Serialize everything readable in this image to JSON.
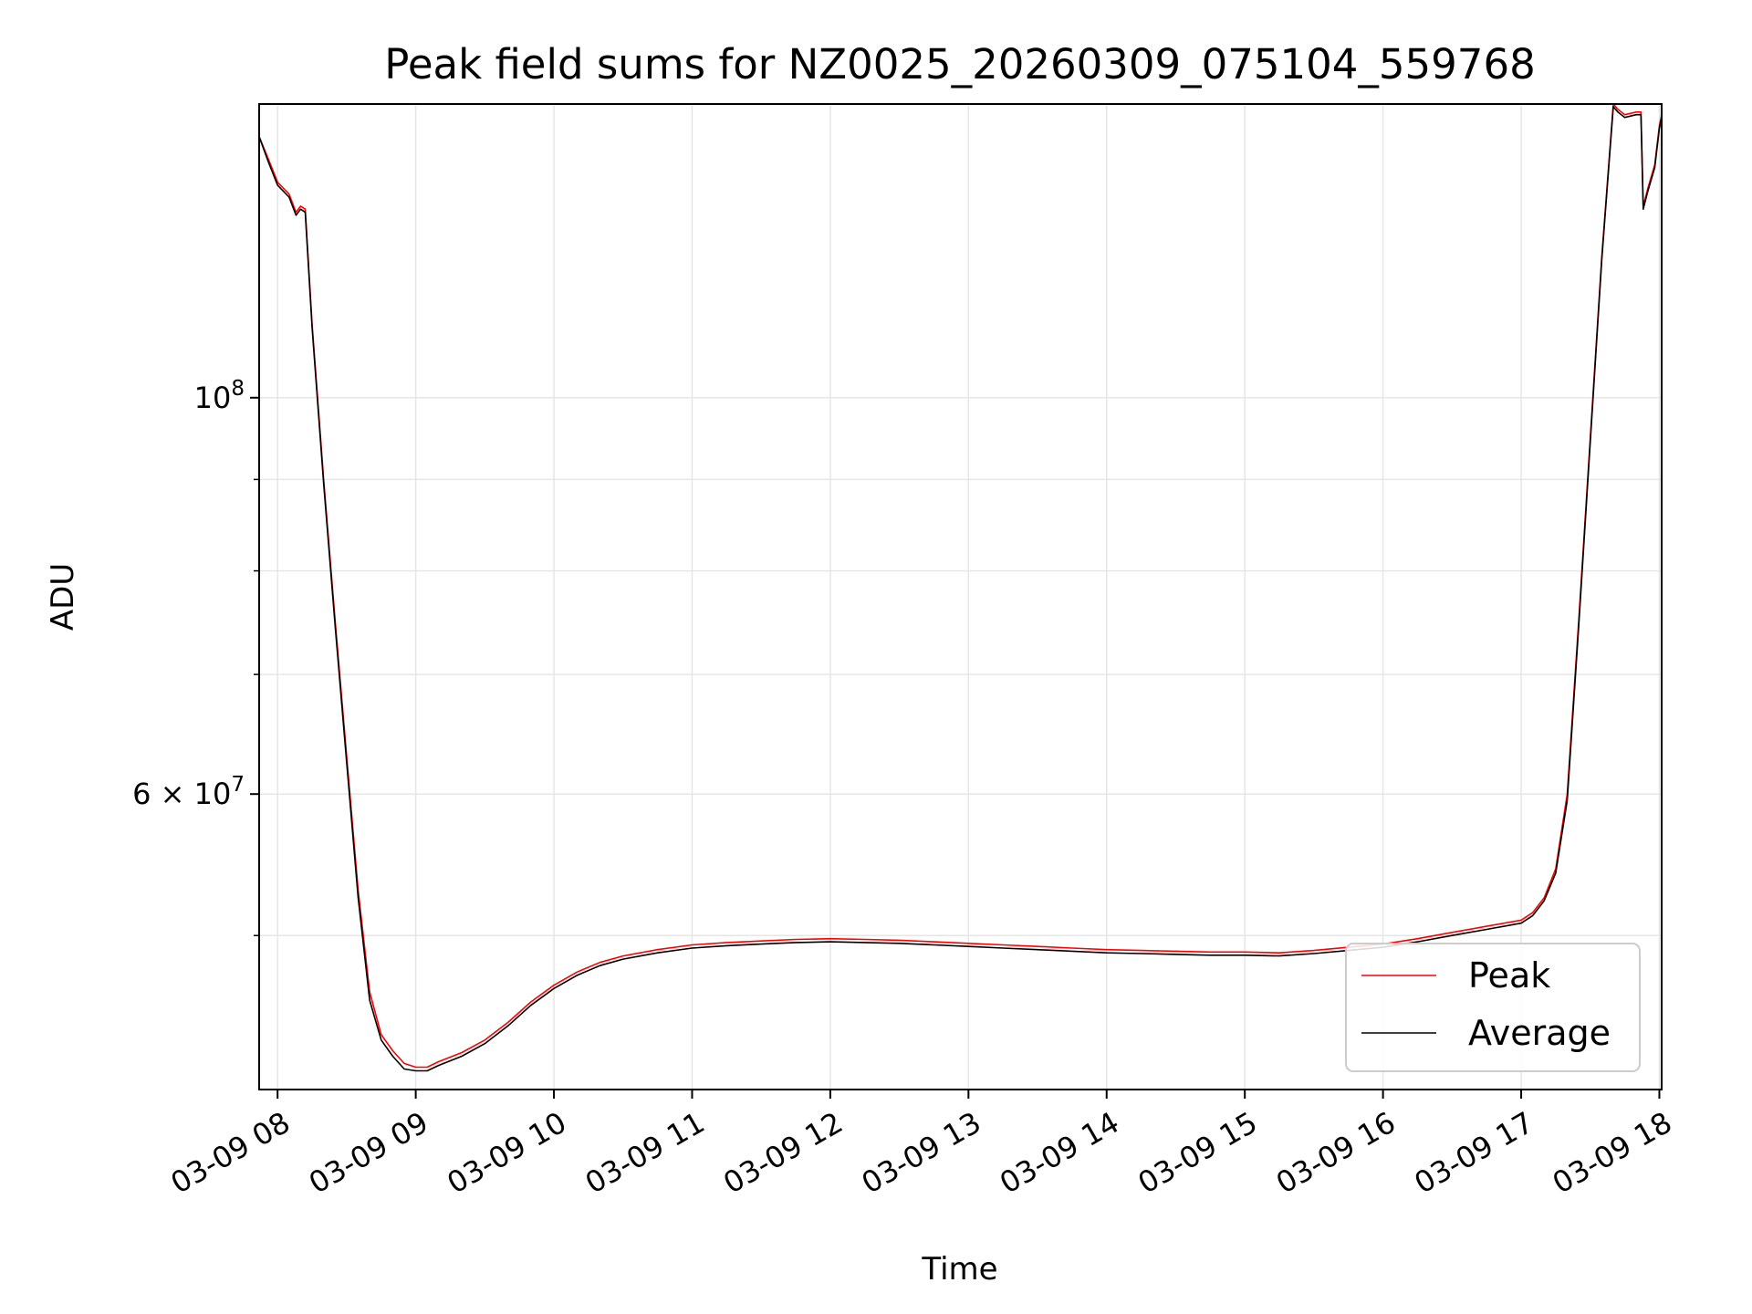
{
  "chart_data": {
    "type": "line",
    "title": "Peak field sums for NZ0025_20260309_075104_559768",
    "xlabel": "Time",
    "ylabel": "ADU",
    "x_scale": "time",
    "y_scale": "log",
    "xlim": [
      "2026-03-09 07:52",
      "2026-03-09 18:01"
    ],
    "ylim": [
      41000000.0,
      146000000.0
    ],
    "grid": true,
    "legend_position": "lower-right",
    "x_tick_labels": [
      "03-09 08",
      "03-09 09",
      "03-09 10",
      "03-09 11",
      "03-09 12",
      "03-09 13",
      "03-09 14",
      "03-09 15",
      "03-09 16",
      "03-09 17",
      "03-09 18"
    ],
    "y_major_ticks": [
      {
        "value": 100000000,
        "base": "10",
        "exponent": "8"
      },
      {
        "value": 60000000,
        "mantissa": "6",
        "times": "×",
        "base": "10",
        "exponent": "7"
      }
    ],
    "y_minor_tick_values": [
      50000000,
      70000000,
      80000000,
      90000000
    ],
    "series": [
      {
        "name": "Peak",
        "color": "#ff0000",
        "x": [
          "07:52",
          "07:56",
          "08:00",
          "08:05",
          "08:08",
          "08:10",
          "08:12",
          "08:15",
          "08:20",
          "08:25",
          "08:30",
          "08:35",
          "08:40",
          "08:45",
          "08:50",
          "08:55",
          "09:00",
          "09:05",
          "09:10",
          "09:20",
          "09:30",
          "09:40",
          "09:50",
          "10:00",
          "10:10",
          "10:20",
          "10:30",
          "10:45",
          "11:00",
          "11:15",
          "11:30",
          "11:45",
          "12:00",
          "12:15",
          "12:30",
          "12:45",
          "13:00",
          "13:15",
          "13:30",
          "13:45",
          "14:00",
          "14:15",
          "14:30",
          "14:45",
          "15:00",
          "15:15",
          "15:30",
          "15:45",
          "16:00",
          "16:15",
          "16:30",
          "16:45",
          "17:00",
          "17:05",
          "17:10",
          "17:15",
          "17:20",
          "17:25",
          "17:30",
          "17:35",
          "17:40",
          "17:42",
          "17:45",
          "17:50",
          "17:52",
          "17:53",
          "17:55",
          "17:58",
          "18:00",
          "18:01"
        ],
        "y": [
          140000000,
          136000000,
          132000000,
          130000000,
          127000000,
          128000000,
          127500000,
          110000000,
          90000000,
          75000000,
          63000000,
          53000000,
          46500000,
          44000000,
          43100000,
          42400000,
          42200000,
          42200000,
          42500000,
          43000000,
          43700000,
          44700000,
          45900000,
          46900000,
          47700000,
          48300000,
          48700000,
          49100000,
          49400000,
          49550000,
          49650000,
          49750000,
          49800000,
          49750000,
          49700000,
          49600000,
          49500000,
          49400000,
          49300000,
          49200000,
          49100000,
          49050000,
          49000000,
          48950000,
          48950000,
          48900000,
          49050000,
          49250000,
          49450000,
          49800000,
          50200000,
          50600000,
          51000000,
          51500000,
          52500000,
          54500000,
          60000000,
          75000000,
          95000000,
          120000000,
          146000000,
          145000000,
          144000000,
          144500000,
          144500000,
          128000000,
          131000000,
          135000000,
          142000000,
          144000000
        ]
      },
      {
        "name": "Average",
        "color": "#000000",
        "x": [
          "07:52",
          "07:56",
          "08:00",
          "08:05",
          "08:08",
          "08:10",
          "08:12",
          "08:15",
          "08:20",
          "08:25",
          "08:30",
          "08:35",
          "08:40",
          "08:45",
          "08:50",
          "08:55",
          "09:00",
          "09:05",
          "09:10",
          "09:20",
          "09:30",
          "09:40",
          "09:50",
          "10:00",
          "10:10",
          "10:20",
          "10:30",
          "10:45",
          "11:00",
          "11:15",
          "11:30",
          "11:45",
          "12:00",
          "12:15",
          "12:30",
          "12:45",
          "13:00",
          "13:15",
          "13:30",
          "13:45",
          "14:00",
          "14:15",
          "14:30",
          "14:45",
          "15:00",
          "15:15",
          "15:30",
          "15:45",
          "16:00",
          "16:15",
          "16:30",
          "16:45",
          "17:00",
          "17:05",
          "17:10",
          "17:15",
          "17:20",
          "17:25",
          "17:30",
          "17:35",
          "17:40",
          "17:42",
          "17:45",
          "17:50",
          "17:52",
          "17:53",
          "17:55",
          "17:58",
          "18:00",
          "18:01"
        ],
        "y": [
          140000000,
          135500000,
          131500000,
          129500000,
          126500000,
          127500000,
          127000000,
          109500000,
          89500000,
          74500000,
          62500000,
          52500000,
          46000000,
          43700000,
          42800000,
          42100000,
          42000000,
          42000000,
          42300000,
          42800000,
          43500000,
          44500000,
          45700000,
          46700000,
          47500000,
          48100000,
          48500000,
          48900000,
          49200000,
          49350000,
          49450000,
          49550000,
          49600000,
          49550000,
          49500000,
          49400000,
          49300000,
          49200000,
          49100000,
          49000000,
          48900000,
          48850000,
          48800000,
          48750000,
          48750000,
          48700000,
          48850000,
          49050000,
          49250000,
          49600000,
          50000000,
          50400000,
          50800000,
          51300000,
          52300000,
          54200000,
          59500000,
          74500000,
          94500000,
          119500000,
          145500000,
          144500000,
          143500000,
          144000000,
          144000000,
          127500000,
          130500000,
          134500000,
          141500000,
          143500000
        ]
      }
    ]
  }
}
